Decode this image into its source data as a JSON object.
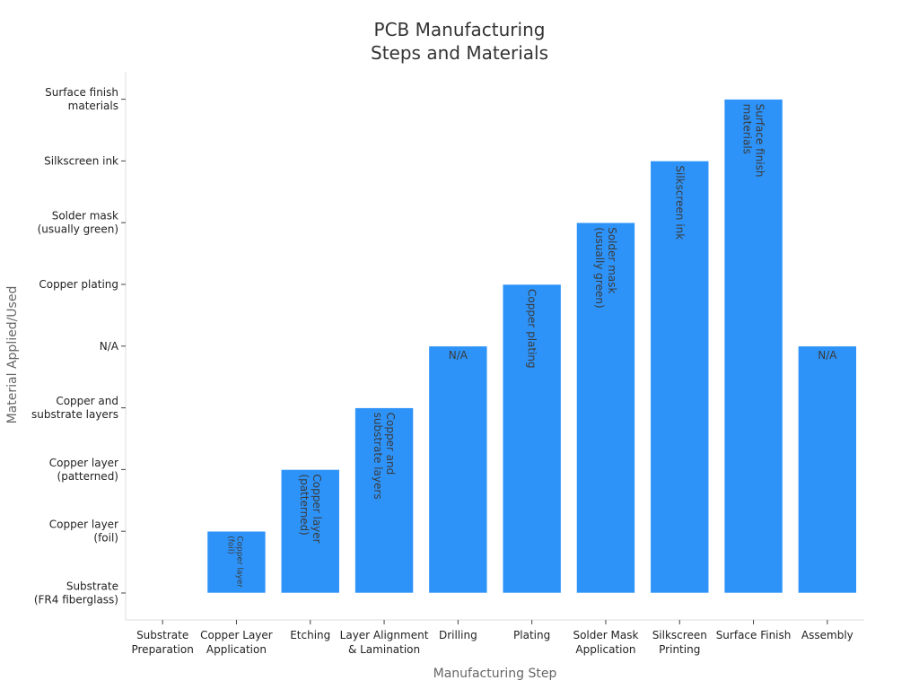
{
  "chart_data": {
    "type": "bar",
    "title": "PCB Manufacturing\nSteps and Materials",
    "xlabel": "Manufacturing Step",
    "ylabel": "Material Applied/Used",
    "categories": [
      "Substrate\nPreparation",
      "Copper Layer\nApplication",
      "Etching",
      "Layer Alignment\n& Lamination",
      "Drilling",
      "Plating",
      "Solder Mask\nApplication",
      "Silkscreen\nPrinting",
      "Surface Finish",
      "Assembly"
    ],
    "y_categories": [
      "Substrate\n(FR4 fiberglass)",
      "Copper layer\n(foil)",
      "Copper layer\n(patterned)",
      "Copper and\nsubstrate layers",
      "N/A",
      "Copper plating",
      "Solder mask\n(usually green)",
      "Silkscreen ink",
      "Surface finish\nmaterials"
    ],
    "values": [
      "Substrate\n(FR4 fiberglass)",
      "Copper layer\n(foil)",
      "Copper layer\n(patterned)",
      "Copper and\nsubstrate layers",
      "N/A",
      "Copper plating",
      "Solder mask\n(usually green)",
      "Silkscreen ink",
      "Surface finish\nmaterials",
      "N/A"
    ],
    "bar_color": "#2e93f8",
    "grid": false,
    "legend": "none"
  }
}
